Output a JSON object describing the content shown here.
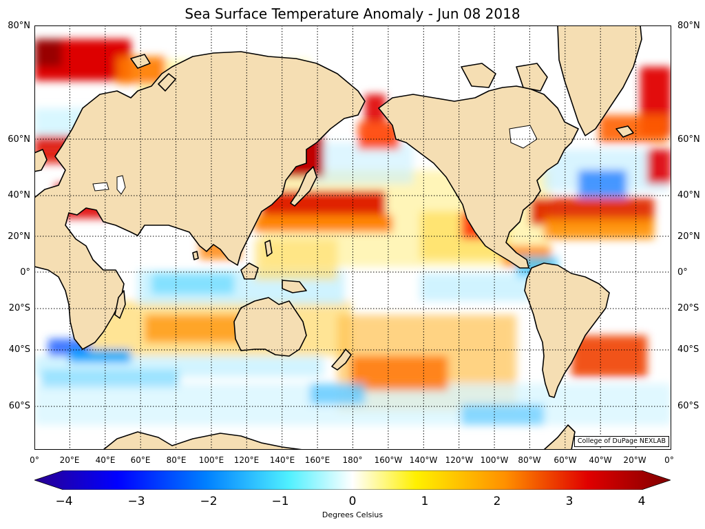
{
  "title": "Sea Surface Temperature Anomaly - Jun 08 2018",
  "lat_labels": [
    "80°N",
    "60°N",
    "40°N",
    "20°N",
    "0°",
    "20°S",
    "40°S",
    "60°S"
  ],
  "lon_labels": [
    "0°",
    "20°E",
    "40°E",
    "60°E",
    "80°E",
    "100°E",
    "120°E",
    "140°E",
    "160°E",
    "180°",
    "160°W",
    "140°W",
    "120°W",
    "100°W",
    "80°W",
    "60°W",
    "40°W",
    "20°W",
    "0°"
  ],
  "colorbar": {
    "ticks": [
      "−4",
      "−3",
      "−2",
      "−1",
      "0",
      "1",
      "2",
      "3",
      "4"
    ],
    "label": "Degrees Celsius",
    "min": -4,
    "max": 4,
    "colors": [
      "#2a0090",
      "#0000ff",
      "#0080ff",
      "#50f0ff",
      "#ffffff",
      "#fff000",
      "#ff9000",
      "#e00000",
      "#800000"
    ]
  },
  "credit": "College of DuPage NEXLAB",
  "colors": {
    "land": "#f5deb3",
    "ocean": "#ffffff",
    "coast": "#000000"
  }
}
